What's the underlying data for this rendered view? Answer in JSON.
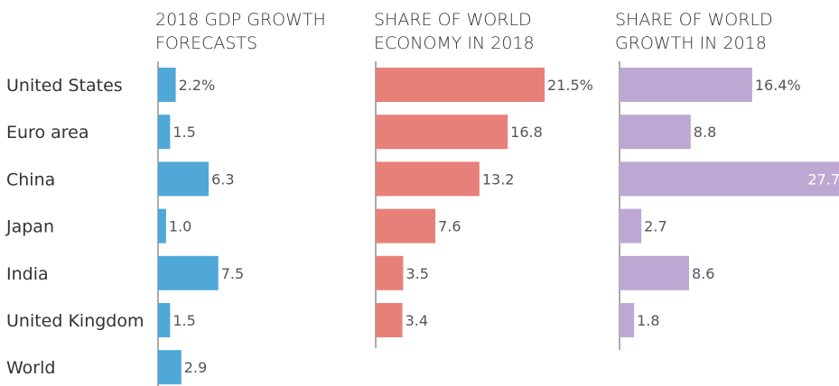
{
  "chart_data": {
    "type": "bar",
    "orientation": "horizontal",
    "categories": [
      "United States",
      "Euro area",
      "China",
      "Japan",
      "India",
      "United Kingdom",
      "World"
    ],
    "panels": [
      {
        "title_lines": [
          "2018 GDP GROWTH",
          "FORECASTS"
        ],
        "color": "#4fa8d8",
        "values": [
          2.2,
          1.5,
          6.3,
          1.0,
          7.5,
          1.5,
          2.9
        ],
        "labels": [
          "2.2%",
          "1.5",
          "6.3",
          "1.0",
          "7.5",
          "1.5",
          "2.9"
        ]
      },
      {
        "title_lines": [
          "SHARE OF WORLD",
          "ECONOMY IN 2018"
        ],
        "color": "#e8807a",
        "values": [
          21.5,
          16.8,
          13.2,
          7.6,
          3.5,
          3.4
        ],
        "labels": [
          "21.5%",
          "16.8",
          "13.2",
          "7.6",
          "3.5",
          "3.4"
        ]
      },
      {
        "title_lines": [
          "SHARE OF WORLD",
          "GROWTH IN 2018"
        ],
        "color": "#bca8d2",
        "values": [
          16.4,
          8.8,
          27.7,
          2.7,
          8.6,
          1.8
        ],
        "labels": [
          "16.4%",
          "8.8",
          "27.7",
          "2.7",
          "8.6",
          "1.8"
        ],
        "label_inside_index": 2
      }
    ]
  }
}
